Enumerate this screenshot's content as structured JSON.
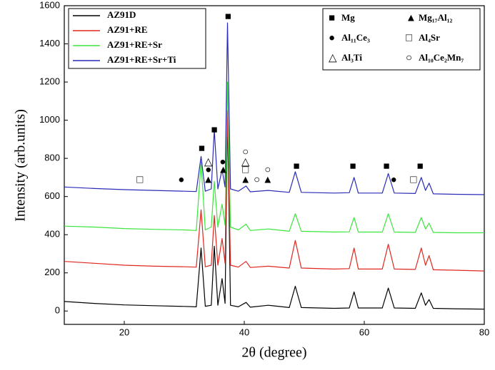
{
  "chart_data": {
    "type": "line",
    "xlabel": "2θ (degree)",
    "ylabel": "Intensity (arb.units)",
    "xlim": [
      10,
      80
    ],
    "ylim": [
      -70,
      1600
    ],
    "xticks": [
      20,
      40,
      60,
      80
    ],
    "yticks": [
      0,
      200,
      400,
      600,
      800,
      1000,
      1200,
      1400,
      1600
    ],
    "x": [
      10,
      15,
      20,
      25,
      30,
      32,
      32.8,
      33.5,
      34.5,
      35,
      35.6,
      36.3,
      36.8,
      37.2,
      37.7,
      39,
      40.3,
      41,
      44,
      47.5,
      48.5,
      49.5,
      55,
      57.5,
      58.3,
      59,
      63,
      64,
      65,
      68.5,
      69.5,
      70.2,
      70.8,
      71.5,
      75,
      80
    ],
    "series": [
      {
        "name": "AZ91D",
        "color": "#000000",
        "values": [
          50,
          40,
          32,
          28,
          24,
          22,
          330,
          25,
          30,
          340,
          30,
          170,
          40,
          1040,
          30,
          22,
          45,
          20,
          30,
          18,
          130,
          18,
          14,
          16,
          100,
          16,
          16,
          120,
          16,
          14,
          95,
          30,
          60,
          14,
          12,
          10
        ]
      },
      {
        "name": "AZ91+RE",
        "color": "#e0271f",
        "values": [
          260,
          250,
          240,
          235,
          232,
          230,
          530,
          232,
          240,
          500,
          240,
          380,
          250,
          1050,
          240,
          230,
          260,
          228,
          235,
          225,
          370,
          225,
          220,
          222,
          330,
          220,
          220,
          350,
          220,
          218,
          330,
          240,
          290,
          216,
          214,
          210
        ]
      },
      {
        "name": "AZ91+RE+Sr",
        "color": "#3be63b",
        "values": [
          445,
          440,
          432,
          428,
          425,
          422,
          780,
          425,
          440,
          680,
          440,
          560,
          450,
          1200,
          440,
          425,
          455,
          422,
          430,
          418,
          510,
          418,
          414,
          415,
          490,
          414,
          414,
          510,
          414,
          412,
          490,
          430,
          460,
          412,
          410,
          410
        ]
      },
      {
        "name": "AZ91+RE+Sr+Ti",
        "color": "#2b2bb8",
        "values": [
          650,
          642,
          636,
          632,
          628,
          626,
          810,
          628,
          640,
          950,
          640,
          740,
          650,
          1510,
          640,
          628,
          655,
          625,
          632,
          622,
          730,
          622,
          618,
          620,
          700,
          618,
          618,
          720,
          618,
          616,
          700,
          632,
          670,
          614,
          612,
          610
        ]
      }
    ],
    "phases": [
      {
        "symbol": "■",
        "name": "Mg"
      },
      {
        "symbol": "▲",
        "name": "Mg₁₇Al₁₂"
      },
      {
        "symbol": "●",
        "name": "Al₁₁Ce₃"
      },
      {
        "symbol": "□",
        "name": "Al₄Sr"
      },
      {
        "symbol": "△",
        "name": "Al₃Ti"
      },
      {
        "symbol": "○",
        "name": "Al₁₀Ce₂Mn₇"
      }
    ],
    "phase_markers": [
      {
        "symbol": "■",
        "x": 32.9,
        "y": 849
      },
      {
        "symbol": "■",
        "x": 35.0,
        "y": 946
      },
      {
        "symbol": "■",
        "x": 37.3,
        "y": 1540
      },
      {
        "symbol": "■",
        "x": 48.7,
        "y": 755
      },
      {
        "symbol": "■",
        "x": 58.1,
        "y": 755
      },
      {
        "symbol": "■",
        "x": 63.7,
        "y": 755
      },
      {
        "symbol": "■",
        "x": 69.3,
        "y": 755
      },
      {
        "symbol": "□",
        "x": 22.6,
        "y": 684
      },
      {
        "symbol": "□",
        "x": 40.2,
        "y": 736
      },
      {
        "symbol": "□",
        "x": 68.2,
        "y": 684
      },
      {
        "symbol": "●",
        "x": 29.5,
        "y": 684
      },
      {
        "symbol": "●",
        "x": 34.0,
        "y": 736
      },
      {
        "symbol": "●",
        "x": 36.4,
        "y": 778
      },
      {
        "symbol": "●",
        "x": 64.9,
        "y": 684
      },
      {
        "symbol": "▲",
        "x": 34.0,
        "y": 684
      },
      {
        "symbol": "▲",
        "x": 36.5,
        "y": 736
      },
      {
        "symbol": "▲",
        "x": 40.2,
        "y": 684
      },
      {
        "symbol": "▲",
        "x": 43.9,
        "y": 684
      },
      {
        "symbol": "△",
        "x": 34.0,
        "y": 778
      },
      {
        "symbol": "△",
        "x": 40.2,
        "y": 778
      },
      {
        "symbol": "○",
        "x": 40.2,
        "y": 830
      },
      {
        "symbol": "○",
        "x": 42.1,
        "y": 684
      },
      {
        "symbol": "○",
        "x": 43.9,
        "y": 736
      }
    ]
  }
}
